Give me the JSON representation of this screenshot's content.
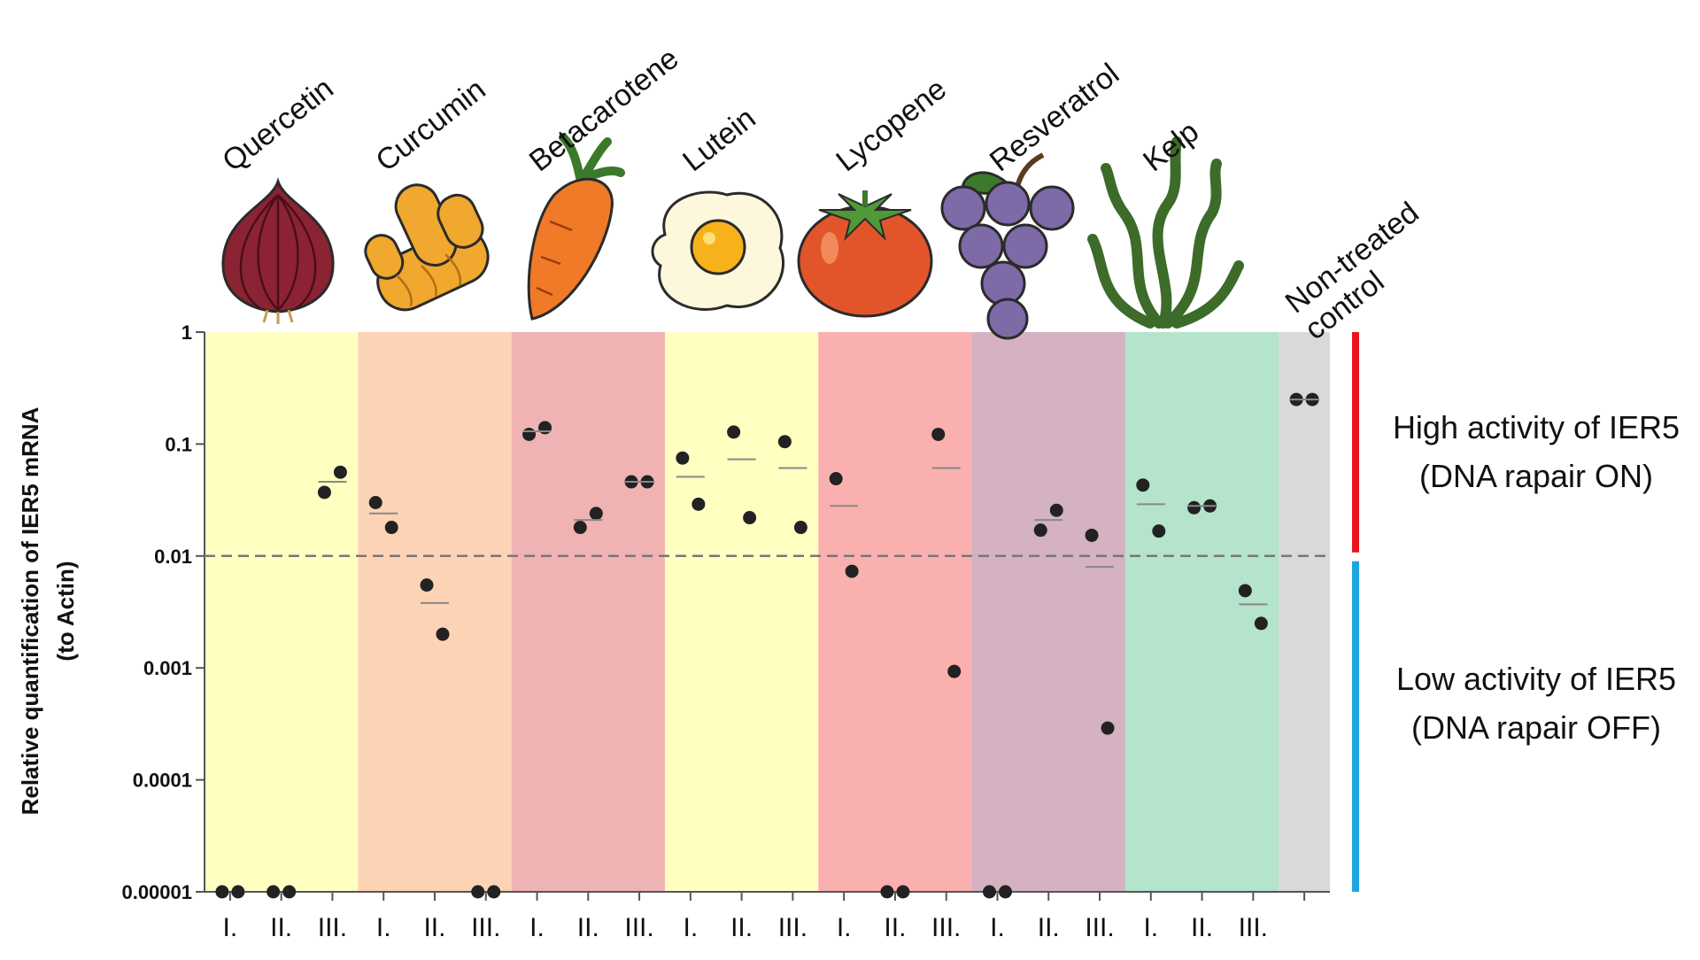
{
  "chart_data": {
    "type": "dotplot",
    "log_y": true,
    "y_label": [
      "Relative quantification of IER5 mRNA",
      "(to Actin)"
    ],
    "ylim": [
      1e-05,
      1
    ],
    "yticks": [
      1,
      0.1,
      0.01,
      0.001,
      0.0001,
      1e-05
    ],
    "threshold": 0.01,
    "point_color": "#222222",
    "mean_color": "#888888",
    "groups": [
      {
        "name": "Quercetin",
        "color": "#ffffc2",
        "categories": [
          "I.",
          "II.",
          "III."
        ],
        "replicates": [
          [
            1e-05,
            1e-05
          ],
          [
            1e-05,
            1e-05
          ],
          [
            0.037,
            0.056
          ]
        ],
        "means": [
          null,
          null,
          0.046
        ]
      },
      {
        "name": "Curcumin",
        "color": "#fdd3b6",
        "categories": [
          "I.",
          "II.",
          "III."
        ],
        "replicates": [
          [
            0.03,
            0.018
          ],
          [
            0.0055,
            0.002
          ],
          [
            1e-05,
            1e-05
          ]
        ],
        "means": [
          0.024,
          0.0038,
          null
        ]
      },
      {
        "name": "Betacarotene",
        "color": "#f0b3b3",
        "categories": [
          "I.",
          "II.",
          "III."
        ],
        "replicates": [
          [
            0.122,
            0.14
          ],
          [
            0.018,
            0.024
          ],
          [
            0.046,
            0.046
          ]
        ],
        "means": [
          0.13,
          0.021,
          0.046
        ]
      },
      {
        "name": "Lutein",
        "color": "#ffffc2",
        "categories": [
          "I.",
          "II.",
          "III."
        ],
        "replicates": [
          [
            0.075,
            0.029
          ],
          [
            0.128,
            0.022
          ],
          [
            0.105,
            0.018
          ]
        ],
        "means": [
          0.051,
          0.073,
          0.061
        ]
      },
      {
        "name": "Lycopene",
        "color": "#fbb0b0",
        "categories": [
          "I.",
          "II.",
          "III."
        ],
        "replicates": [
          [
            0.049,
            0.0073
          ],
          [
            1e-05,
            1e-05
          ],
          [
            0.122,
            0.00093
          ]
        ],
        "means": [
          0.028,
          null,
          0.061
        ]
      },
      {
        "name": "Resveratrol",
        "color": "#d4b2c1",
        "categories": [
          "I.",
          "II.",
          "III."
        ],
        "replicates": [
          [
            1e-05,
            1e-05
          ],
          [
            0.017,
            0.0256
          ],
          [
            0.0153,
            0.00029
          ]
        ],
        "means": [
          null,
          0.021,
          0.008
        ]
      },
      {
        "name": "Kelp",
        "color": "#b4e4cc",
        "categories": [
          "I.",
          "II.",
          "III."
        ],
        "replicates": [
          [
            0.043,
            0.0167
          ],
          [
            0.027,
            0.028
          ],
          [
            0.0049,
            0.0025
          ]
        ],
        "means": [
          0.029,
          0.028,
          0.0037
        ]
      },
      {
        "name": [
          "Non-treated",
          "control"
        ],
        "color": "#d9d9d9",
        "categories": [
          null
        ],
        "replicates": [
          [
            0.25,
            0.25
          ]
        ],
        "means": [
          0.25
        ]
      }
    ],
    "annotations": [
      {
        "lines": [
          "High activity of IER5",
          "(DNA rapair ON)"
        ],
        "color": "#e8141c"
      },
      {
        "lines": [
          "Low activity of IER5",
          "(DNA rapair OFF)"
        ],
        "color": "#1ba6e0"
      }
    ]
  }
}
